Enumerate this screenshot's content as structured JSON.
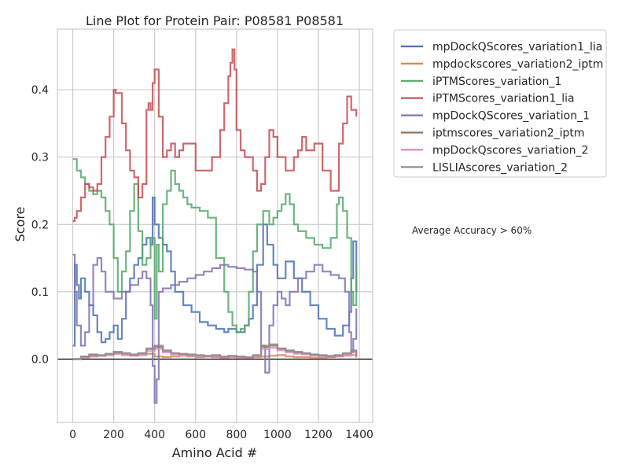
{
  "chart_data": {
    "type": "line",
    "step": true,
    "title": "Line Plot for Protein Pair: P08581 P08581",
    "xlabel": "Amino Acid #",
    "ylabel": "Score",
    "xlim": [
      -75,
      1465
    ],
    "ylim": [
      -0.094,
      0.49
    ],
    "xticks": [
      0,
      200,
      400,
      600,
      800,
      1000,
      1200,
      1400
    ],
    "xtick_labels": [
      "0",
      "200",
      "400",
      "600",
      "800",
      "1000",
      "1200",
      "1400"
    ],
    "yticks": [
      0.0,
      0.1,
      0.2,
      0.3,
      0.4
    ],
    "ytick_labels": [
      "0.0",
      "0.1",
      "0.2",
      "0.3",
      "0.4"
    ],
    "grid": true,
    "zero_line": true,
    "legend_position": "outside-upper-right",
    "annotation": "Average Accuracy > 60%",
    "series": [
      {
        "name": "mpDockQScores_variation1_lia",
        "color": "#4c72b0",
        "x": [
          0,
          10,
          20,
          30,
          40,
          60,
          80,
          100,
          120,
          140,
          160,
          180,
          200,
          220,
          240,
          260,
          280,
          300,
          320,
          340,
          360,
          380,
          390,
          400,
          420,
          440,
          460,
          480,
          500,
          540,
          580,
          620,
          660,
          700,
          740,
          760,
          800,
          840,
          860,
          880,
          900,
          930,
          950,
          980,
          1000,
          1040,
          1080,
          1120,
          1160,
          1200,
          1240,
          1280,
          1320,
          1350,
          1360,
          1370,
          1385
        ],
        "y": [
          0.02,
          0.14,
          0.11,
          0.09,
          0.12,
          0.1,
          0.08,
          0.065,
          0.04,
          0.025,
          0.03,
          0.04,
          0.05,
          0.03,
          0.06,
          0.1,
          0.12,
          0.14,
          0.15,
          0.17,
          0.18,
          0.17,
          0.24,
          0.2,
          0.18,
          0.17,
          0.16,
          0.13,
          0.1,
          0.08,
          0.07,
          0.055,
          0.05,
          0.045,
          0.04,
          0.045,
          0.04,
          0.05,
          0.06,
          0.08,
          0.14,
          0.2,
          0.17,
          0.14,
          0.12,
          0.145,
          0.12,
          0.1,
          0.08,
          0.06,
          0.045,
          0.035,
          0.05,
          0.07,
          0.12,
          0.175,
          0.1
        ]
      },
      {
        "name": "mpdockscores_variation2_iptm",
        "color": "#dd8452",
        "x": [
          0,
          40,
          80,
          120,
          160,
          200,
          240,
          280,
          320,
          360,
          400,
          440,
          480,
          520,
          560,
          600,
          640,
          680,
          720,
          760,
          800,
          840,
          880,
          920,
          960,
          1000,
          1040,
          1080,
          1120,
          1160,
          1200,
          1240,
          1280,
          1320,
          1360,
          1385
        ],
        "y": [
          0.0,
          0.003,
          0.004,
          0.005,
          0.006,
          0.008,
          0.006,
          0.005,
          0.006,
          0.008,
          0.004,
          0.003,
          0.004,
          0.005,
          0.004,
          0.003,
          0.004,
          0.003,
          0.002,
          0.003,
          0.002,
          0.002,
          0.003,
          0.004,
          0.005,
          0.006,
          0.004,
          0.003,
          0.003,
          0.002,
          0.002,
          0.003,
          0.004,
          0.005,
          0.006,
          0.002
        ]
      },
      {
        "name": "iPTMScores_variation_1",
        "color": "#55a868",
        "x": [
          0,
          20,
          40,
          60,
          80,
          100,
          120,
          140,
          160,
          180,
          200,
          220,
          240,
          260,
          280,
          300,
          320,
          340,
          360,
          380,
          400,
          410,
          420,
          440,
          460,
          480,
          500,
          520,
          540,
          560,
          580,
          620,
          660,
          700,
          740,
          760,
          780,
          800,
          820,
          840,
          860,
          880,
          900,
          930,
          960,
          980,
          1000,
          1020,
          1040,
          1060,
          1080,
          1100,
          1140,
          1180,
          1220,
          1260,
          1290,
          1300,
          1320,
          1340,
          1360,
          1370,
          1385
        ],
        "y": [
          0.297,
          0.28,
          0.27,
          0.26,
          0.25,
          0.245,
          0.25,
          0.24,
          0.22,
          0.2,
          0.15,
          0.1,
          0.13,
          0.16,
          0.22,
          0.26,
          0.19,
          0.14,
          0.15,
          0.18,
          0.06,
          0.17,
          0.13,
          0.23,
          0.25,
          0.28,
          0.26,
          0.25,
          0.24,
          0.23,
          0.225,
          0.22,
          0.21,
          0.15,
          0.1,
          0.07,
          0.05,
          0.04,
          0.045,
          0.05,
          0.1,
          0.16,
          0.2,
          0.22,
          0.2,
          0.21,
          0.22,
          0.23,
          0.245,
          0.23,
          0.2,
          0.19,
          0.18,
          0.17,
          0.165,
          0.18,
          0.23,
          0.24,
          0.22,
          0.18,
          0.1,
          0.08,
          0.14
        ]
      },
      {
        "name": "iPTMScores_variation1_lia",
        "color": "#c44e52",
        "x": [
          0,
          10,
          20,
          40,
          60,
          80,
          100,
          120,
          140,
          160,
          180,
          200,
          210,
          240,
          260,
          280,
          300,
          320,
          340,
          360,
          370,
          380,
          390,
          400,
          420,
          440,
          460,
          480,
          500,
          520,
          540,
          560,
          600,
          640,
          680,
          720,
          740,
          760,
          770,
          780,
          790,
          800,
          820,
          840,
          860,
          880,
          900,
          920,
          940,
          960,
          980,
          1000,
          1040,
          1080,
          1100,
          1120,
          1140,
          1180,
          1220,
          1260,
          1300,
          1320,
          1340,
          1360,
          1385
        ],
        "y": [
          0.205,
          0.21,
          0.22,
          0.24,
          0.26,
          0.255,
          0.25,
          0.26,
          0.3,
          0.33,
          0.36,
          0.4,
          0.395,
          0.35,
          0.31,
          0.28,
          0.27,
          0.24,
          0.26,
          0.37,
          0.38,
          0.37,
          0.41,
          0.43,
          0.36,
          0.3,
          0.31,
          0.32,
          0.3,
          0.31,
          0.32,
          0.32,
          0.28,
          0.28,
          0.3,
          0.34,
          0.38,
          0.42,
          0.44,
          0.46,
          0.43,
          0.34,
          0.31,
          0.3,
          0.3,
          0.28,
          0.25,
          0.26,
          0.3,
          0.34,
          0.33,
          0.3,
          0.28,
          0.3,
          0.31,
          0.33,
          0.31,
          0.32,
          0.28,
          0.25,
          0.32,
          0.35,
          0.39,
          0.37,
          0.36
        ]
      },
      {
        "name": "mpDockQScores_variation_1",
        "color": "#8172b3",
        "x": [
          0,
          10,
          20,
          40,
          60,
          80,
          100,
          120,
          140,
          160,
          200,
          240,
          280,
          320,
          340,
          360,
          380,
          390,
          400,
          410,
          420,
          440,
          480,
          520,
          560,
          600,
          640,
          680,
          720,
          760,
          800,
          840,
          880,
          900,
          920,
          940,
          960,
          980,
          1000,
          1020,
          1040,
          1060,
          1100,
          1140,
          1180,
          1220,
          1260,
          1300,
          1330,
          1350,
          1360,
          1370,
          1385
        ],
        "y": [
          0.155,
          0.1,
          0.05,
          0.02,
          0.04,
          0.08,
          0.14,
          0.15,
          0.13,
          0.1,
          0.09,
          0.1,
          0.11,
          0.12,
          0.13,
          0.12,
          0.08,
          -0.01,
          -0.065,
          -0.03,
          0.1,
          0.105,
          0.11,
          0.115,
          0.12,
          0.125,
          0.13,
          0.135,
          0.14,
          0.137,
          0.135,
          0.133,
          0.13,
          0.1,
          0.02,
          -0.02,
          0.05,
          0.08,
          0.1,
          0.09,
          0.08,
          0.1,
          0.12,
          0.13,
          0.14,
          0.13,
          0.125,
          0.12,
          0.1,
          0.04,
          0.01,
          0.03,
          0.075
        ]
      },
      {
        "name": "iptmscores_variation2_iptm",
        "color": "#937860",
        "x": [
          0,
          40,
          80,
          120,
          160,
          200,
          240,
          280,
          320,
          360,
          400,
          440,
          480,
          520,
          560,
          600,
          640,
          680,
          720,
          760,
          800,
          840,
          880,
          920,
          960,
          1000,
          1040,
          1080,
          1120,
          1160,
          1200,
          1240,
          1280,
          1320,
          1360,
          1385
        ],
        "y": [
          0.0,
          0.003,
          0.006,
          0.005,
          0.007,
          0.01,
          0.008,
          0.006,
          0.008,
          0.015,
          0.018,
          0.012,
          0.008,
          0.007,
          0.006,
          0.005,
          0.004,
          0.005,
          0.003,
          0.004,
          0.003,
          0.002,
          0.005,
          0.018,
          0.02,
          0.015,
          0.012,
          0.01,
          0.008,
          0.006,
          0.005,
          0.004,
          0.005,
          0.008,
          0.012,
          0.004
        ]
      },
      {
        "name": "mpDockQscores_variation_2",
        "color": "#da8bc3",
        "x": [
          0,
          40,
          80,
          120,
          160,
          200,
          240,
          280,
          320,
          360,
          400,
          440,
          480,
          520,
          560,
          600,
          640,
          680,
          720,
          760,
          800,
          840,
          880,
          920,
          960,
          1000,
          1040,
          1080,
          1120,
          1160,
          1200,
          1240,
          1280,
          1320,
          1360,
          1385
        ],
        "y": [
          0.0,
          0.002,
          0.004,
          0.005,
          0.006,
          0.008,
          0.007,
          0.005,
          0.007,
          0.012,
          0.015,
          0.01,
          0.007,
          0.006,
          0.005,
          0.004,
          0.004,
          0.004,
          0.003,
          0.003,
          0.002,
          0.002,
          0.004,
          0.015,
          0.017,
          0.013,
          0.01,
          0.008,
          0.007,
          0.005,
          0.004,
          0.004,
          0.004,
          0.007,
          0.01,
          0.003
        ]
      },
      {
        "name": "LISLIAscores_variation_2",
        "color": "#8c8c8c",
        "x": [
          0,
          40,
          80,
          120,
          160,
          200,
          240,
          280,
          320,
          360,
          400,
          440,
          480,
          520,
          560,
          600,
          640,
          680,
          720,
          760,
          800,
          840,
          880,
          920,
          960,
          1000,
          1040,
          1080,
          1120,
          1160,
          1200,
          1240,
          1280,
          1320,
          1360,
          1385
        ],
        "y": [
          0.0,
          0.004,
          0.007,
          0.006,
          0.008,
          0.011,
          0.009,
          0.007,
          0.009,
          0.016,
          0.02,
          0.013,
          0.009,
          0.008,
          0.007,
          0.006,
          0.005,
          0.006,
          0.004,
          0.005,
          0.004,
          0.003,
          0.006,
          0.02,
          0.022,
          0.016,
          0.013,
          0.011,
          0.009,
          0.007,
          0.006,
          0.005,
          0.006,
          0.009,
          0.013,
          0.005
        ]
      }
    ]
  }
}
